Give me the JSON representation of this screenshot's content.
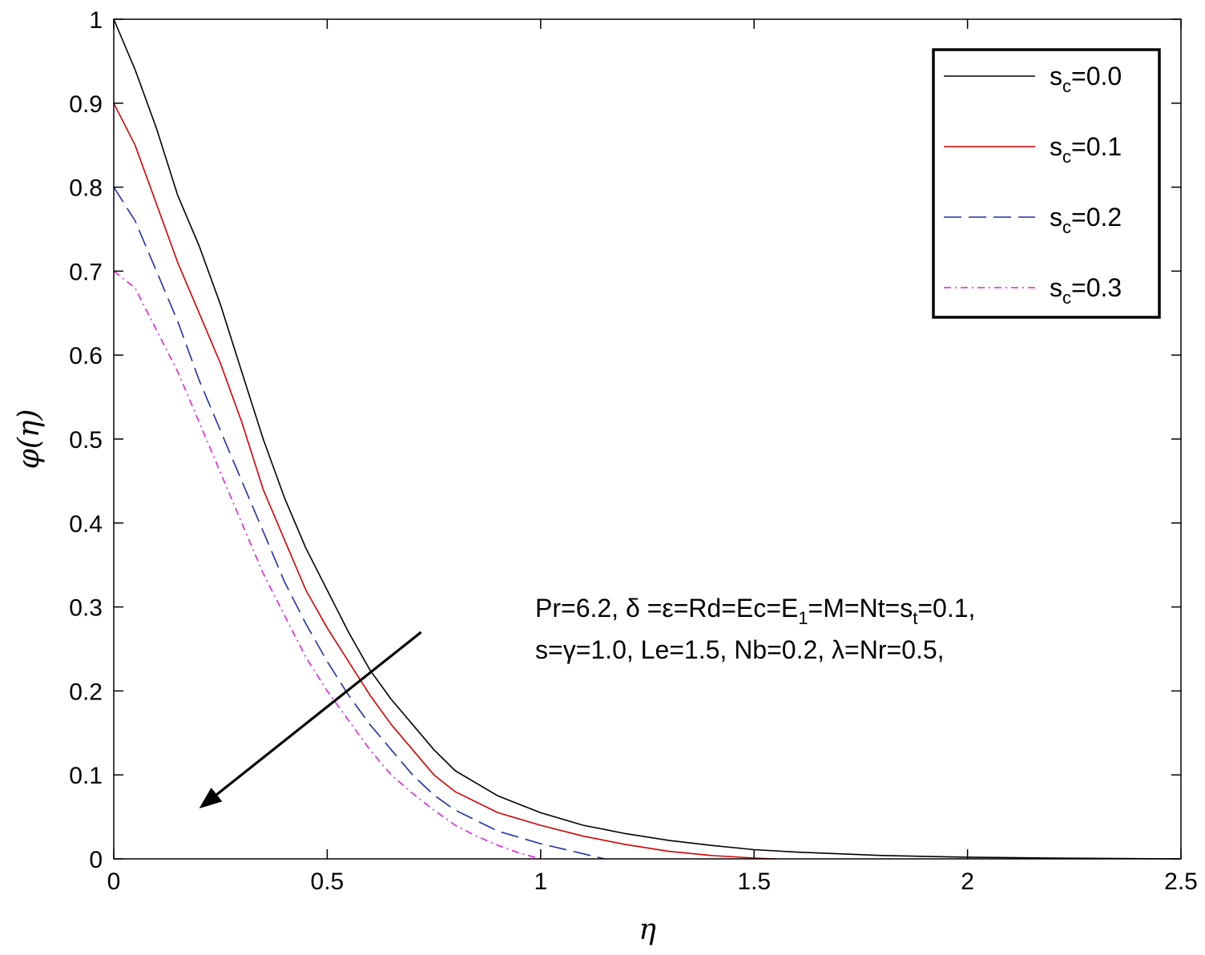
{
  "chart_data": {
    "type": "line",
    "xlabel": "η",
    "ylabel": "φ(η)",
    "xlim": [
      0,
      2.5
    ],
    "ylim": [
      0,
      1
    ],
    "xticks": [
      0,
      0.5,
      1,
      1.5,
      2,
      2.5
    ],
    "xtick_labels": [
      "0",
      "0.5",
      "1",
      "1.5",
      "2",
      "2.5"
    ],
    "yticks": [
      0,
      0.1,
      0.2,
      0.3,
      0.4,
      0.5,
      0.6,
      0.7,
      0.8,
      0.9,
      1
    ],
    "ytick_labels": [
      "0",
      "0.1",
      "0.2",
      "0.3",
      "0.4",
      "0.5",
      "0.6",
      "0.7",
      "0.8",
      "0.9",
      "1"
    ],
    "grid": false,
    "legend_position": "top-right",
    "series": [
      {
        "name": "s_c=0.0",
        "label_base": "s",
        "label_sub": "c",
        "label_rest": "=0.0",
        "color": "#000000",
        "dash": "solid",
        "x": [
          0,
          0.05,
          0.1,
          0.15,
          0.2,
          0.25,
          0.3,
          0.35,
          0.4,
          0.45,
          0.5,
          0.55,
          0.6,
          0.65,
          0.7,
          0.75,
          0.8,
          0.9,
          1.0,
          1.1,
          1.2,
          1.3,
          1.4,
          1.5,
          1.6,
          1.7,
          1.8,
          1.9,
          2.0,
          2.2,
          2.5
        ],
        "y": [
          1.0,
          0.94,
          0.87,
          0.79,
          0.73,
          0.66,
          0.58,
          0.5,
          0.43,
          0.37,
          0.32,
          0.27,
          0.225,
          0.19,
          0.16,
          0.13,
          0.105,
          0.075,
          0.055,
          0.04,
          0.03,
          0.022,
          0.016,
          0.011,
          0.008,
          0.006,
          0.004,
          0.003,
          0.002,
          0.001,
          0.0
        ]
      },
      {
        "name": "s_c=0.1",
        "label_base": "s",
        "label_sub": "c",
        "label_rest": "=0.1",
        "color": "#d00000",
        "dash": "solid",
        "x": [
          0,
          0.05,
          0.1,
          0.15,
          0.2,
          0.25,
          0.3,
          0.35,
          0.4,
          0.45,
          0.5,
          0.55,
          0.6,
          0.65,
          0.7,
          0.75,
          0.8,
          0.9,
          1.0,
          1.1,
          1.2,
          1.3,
          1.4,
          1.5,
          1.55
        ],
        "y": [
          0.9,
          0.85,
          0.78,
          0.71,
          0.65,
          0.59,
          0.52,
          0.44,
          0.38,
          0.32,
          0.275,
          0.235,
          0.195,
          0.16,
          0.13,
          0.1,
          0.08,
          0.055,
          0.04,
          0.027,
          0.017,
          0.009,
          0.004,
          0.001,
          0.0
        ]
      },
      {
        "name": "s_c=0.2",
        "label_base": "s",
        "label_sub": "c",
        "label_rest": "=0.2",
        "color": "#1f2faa",
        "dash": "dashed",
        "x": [
          0,
          0.05,
          0.1,
          0.15,
          0.2,
          0.25,
          0.3,
          0.35,
          0.4,
          0.45,
          0.5,
          0.55,
          0.6,
          0.65,
          0.7,
          0.75,
          0.8,
          0.9,
          1.0,
          1.1,
          1.15
        ],
        "y": [
          0.8,
          0.76,
          0.7,
          0.64,
          0.57,
          0.51,
          0.45,
          0.39,
          0.33,
          0.28,
          0.235,
          0.195,
          0.16,
          0.13,
          0.1,
          0.076,
          0.058,
          0.033,
          0.018,
          0.006,
          0.0
        ]
      },
      {
        "name": "s_c=0.3",
        "label_base": "s",
        "label_sub": "c",
        "label_rest": "=0.3",
        "color": "#e020e0",
        "dash": "dashdot",
        "x": [
          0,
          0.05,
          0.1,
          0.15,
          0.2,
          0.25,
          0.3,
          0.35,
          0.4,
          0.45,
          0.5,
          0.55,
          0.6,
          0.65,
          0.7,
          0.75,
          0.8,
          0.85,
          0.9,
          0.95,
          1.0
        ],
        "y": [
          0.7,
          0.68,
          0.63,
          0.58,
          0.52,
          0.46,
          0.4,
          0.34,
          0.29,
          0.24,
          0.2,
          0.165,
          0.13,
          0.1,
          0.078,
          0.058,
          0.04,
          0.027,
          0.016,
          0.007,
          0.0
        ]
      }
    ],
    "annotation": {
      "line1": [
        {
          "t": "Pr=6.2, δ =ε=Rd=Ec=E"
        },
        {
          "t": "1",
          "sub": true
        },
        {
          "t": "=M=Nt=s"
        },
        {
          "t": "t",
          "sub": true
        },
        {
          "t": "=0.1,"
        }
      ],
      "line2": [
        {
          "t": "s=γ=1.0, Le=1.5, Nb=0.2, λ=Nr=0.5,"
        }
      ]
    },
    "arrow": {
      "from": [
        0.72,
        0.27
      ],
      "to": [
        0.2,
        0.06
      ]
    }
  }
}
